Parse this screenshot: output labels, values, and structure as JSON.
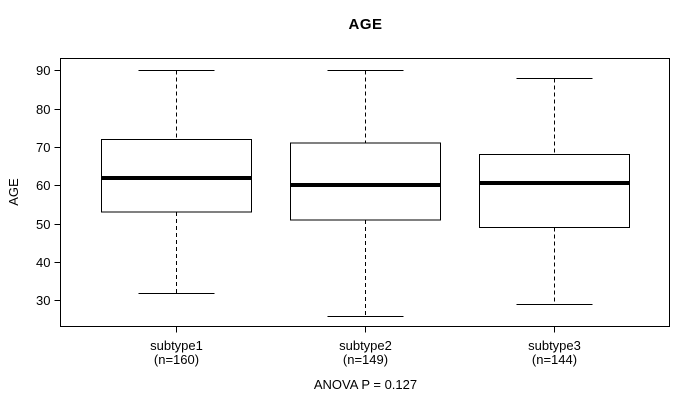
{
  "chart_data": {
    "type": "boxplot",
    "title": "AGE",
    "ylabel": "AGE",
    "xlabel": "",
    "annotation": "ANOVA P = 0.127",
    "categories": [
      "subtype1",
      "subtype2",
      "subtype3"
    ],
    "sample_size_labels": [
      "(n=160)",
      "(n=149)",
      "(n=144)"
    ],
    "yticks": [
      30,
      40,
      50,
      60,
      70,
      80,
      90
    ],
    "ylim": [
      23.2,
      93.1
    ],
    "grid": false,
    "legend": "none",
    "series": [
      {
        "name": "subtype1",
        "n": 160,
        "whisker_low": 32,
        "q1": 53,
        "median": 62,
        "q3": 72,
        "whisker_high": 90,
        "outliers": []
      },
      {
        "name": "subtype2",
        "n": 149,
        "whisker_low": 26,
        "q1": 51,
        "median": 60,
        "q3": 71,
        "whisker_high": 90,
        "outliers": []
      },
      {
        "name": "subtype3",
        "n": 144,
        "whisker_low": 29,
        "q1": 49,
        "median": 60.5,
        "q3": 68,
        "whisker_high": 88,
        "outliers": []
      }
    ],
    "colors": {
      "line": "#000000",
      "box_fill": "#ffffff",
      "background": "#ffffff"
    },
    "whisker_style": "dashed"
  }
}
